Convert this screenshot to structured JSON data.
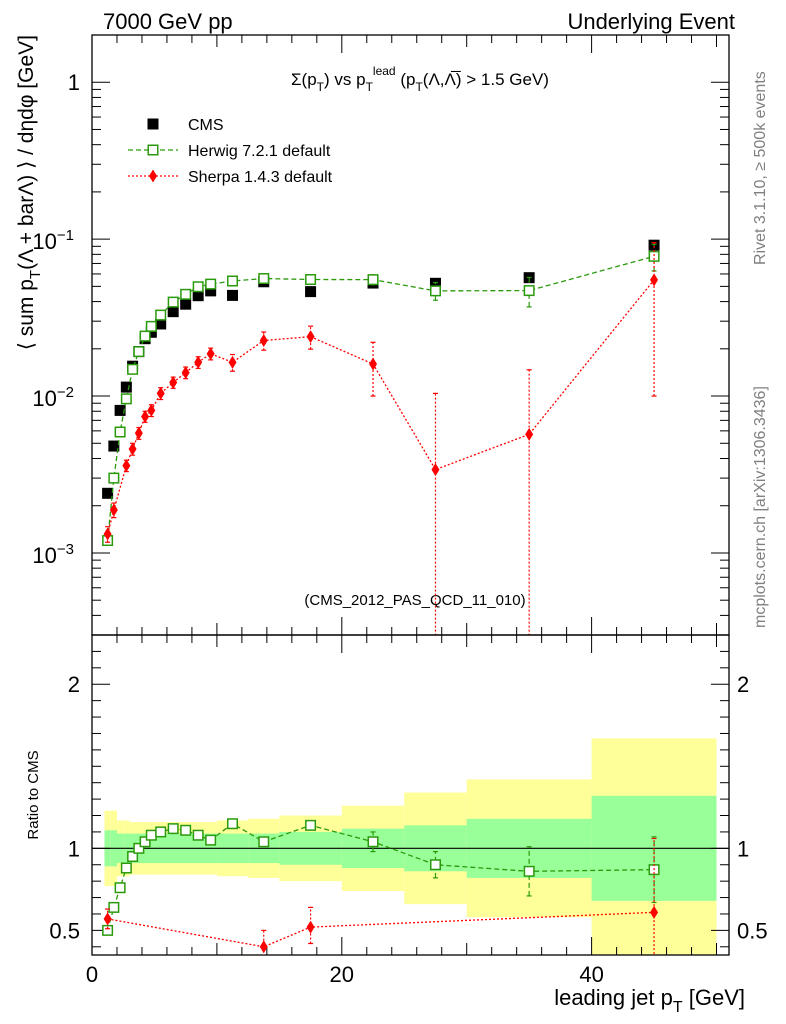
{
  "header": {
    "left": "7000 GeV pp",
    "right": "Underlying Event"
  },
  "side_labels": {
    "rivet": "Rivet 3.1.10, ≥ 500k events",
    "mcplots": "mcplots.cern.ch [arXiv:1306.3436]"
  },
  "chart_data": [
    {
      "type": "scatter",
      "title": "Σ(p_T) vs p_T^lead (p_T(Λ,Λ̅) > 1.5 GeV)",
      "ylabel": "⟨ sum p_T(Λ + barΛ) ⟩ / dηdφ [GeV]",
      "xlabel": "",
      "xlim": [
        0,
        51
      ],
      "ylim": [
        0.0003,
        2
      ],
      "yscale": "log",
      "yticks": [
        {
          "value": 0.001,
          "base": "10",
          "exp": "−3"
        },
        {
          "value": 0.01,
          "base": "10",
          "exp": "−2"
        },
        {
          "value": 0.1,
          "base": "10",
          "exp": "−1"
        },
        {
          "value": 1,
          "label": "1"
        }
      ],
      "legend_position": "top-left",
      "watermark": "(CMS_2012_PAS_QCD_11_010)",
      "series": [
        {
          "name": "CMS",
          "color": "#000000",
          "marker": "filled-square",
          "x": [
            1.25,
            1.75,
            2.25,
            2.75,
            3.25,
            3.75,
            4.25,
            4.75,
            5.5,
            6.5,
            7.5,
            8.5,
            9.5,
            11.25,
            13.75,
            17.5,
            22.5,
            27.5,
            35,
            45
          ],
          "y": [
            0.0024,
            0.0048,
            0.0081,
            0.0114,
            0.0155,
            0.0192,
            0.0232,
            0.0255,
            0.0288,
            0.0345,
            0.0385,
            0.0436,
            0.0468,
            0.0438,
            0.0535,
            0.0463,
            0.0525,
            0.0523,
            0.0568,
            0.0915
          ]
        },
        {
          "name": "Herwig 7.2.1 default",
          "color": "#2a9a0c",
          "marker": "open-square",
          "line": "dashed",
          "x": [
            1.25,
            1.75,
            2.25,
            2.75,
            3.25,
            3.75,
            4.25,
            4.75,
            5.5,
            6.5,
            7.5,
            8.5,
            9.5,
            11.25,
            13.75,
            17.5,
            22.5,
            27.5,
            35,
            45
          ],
          "y": [
            0.0012,
            0.003,
            0.0059,
            0.0096,
            0.0148,
            0.0192,
            0.0241,
            0.0278,
            0.0328,
            0.0397,
            0.0445,
            0.0497,
            0.0517,
            0.0541,
            0.0561,
            0.0553,
            0.0552,
            0.0468,
            0.047,
            0.0777
          ],
          "err": [
            0,
            0,
            0,
            0,
            0,
            0,
            0,
            0,
            0,
            0,
            0,
            0,
            0,
            0,
            0,
            0,
            0.004,
            0.006,
            0.01,
            0.015
          ]
        },
        {
          "name": "Sherpa 1.4.3 default",
          "color": "#ff0000",
          "marker": "filled-diamond",
          "line": "dotted",
          "x": [
            1.25,
            1.75,
            2.75,
            3.25,
            3.75,
            4.25,
            4.75,
            5.5,
            6.5,
            7.5,
            8.5,
            9.5,
            11.25,
            13.75,
            17.5,
            22.5,
            27.5,
            35,
            45
          ],
          "y": [
            0.00132,
            0.00188,
            0.0036,
            0.0046,
            0.0058,
            0.0074,
            0.0081,
            0.0104,
            0.0122,
            0.0141,
            0.0164,
            0.0186,
            0.0164,
            0.0226,
            0.0239,
            0.016,
            0.0034,
            0.0057,
            0.055
          ],
          "err_lo": [
            0.00015,
            0.0002,
            0.0003,
            0.0004,
            0.0005,
            0.0006,
            0.0007,
            0.0009,
            0.001,
            0.0012,
            0.0014,
            0.0016,
            0.002,
            0.003,
            0.004,
            0.006,
            0.0034,
            0.0057,
            0.045
          ],
          "err_hi": [
            0.00015,
            0.0002,
            0.0003,
            0.0004,
            0.0005,
            0.0006,
            0.0007,
            0.0009,
            0.001,
            0.0012,
            0.0014,
            0.0016,
            0.002,
            0.003,
            0.004,
            0.006,
            0.007,
            0.009,
            0.04
          ]
        }
      ]
    },
    {
      "type": "scatter",
      "ylabel": "Ratio to CMS",
      "xlabel": "leading jet p_T [GeV]",
      "xlim": [
        0,
        51
      ],
      "ylim": [
        0.35,
        2.3
      ],
      "xticks": [
        "0",
        "20",
        "40"
      ],
      "yticks": [
        "0.5",
        "1",
        "2"
      ],
      "bands": [
        {
          "x0": 1.0,
          "x1": 1.5,
          "stat_lo": 0.89,
          "stat_hi": 1.11,
          "tot_lo": 0.77,
          "tot_hi": 1.23
        },
        {
          "x0": 1.5,
          "x1": 2.0,
          "stat_lo": 0.89,
          "stat_hi": 1.11,
          "tot_lo": 0.77,
          "tot_hi": 1.23
        },
        {
          "x0": 2.0,
          "x1": 2.5,
          "stat_lo": 0.91,
          "stat_hi": 1.09,
          "tot_lo": 0.83,
          "tot_hi": 1.17
        },
        {
          "x0": 2.5,
          "x1": 3.0,
          "stat_lo": 0.91,
          "stat_hi": 1.09,
          "tot_lo": 0.83,
          "tot_hi": 1.17
        },
        {
          "x0": 3.0,
          "x1": 5.0,
          "stat_lo": 0.91,
          "stat_hi": 1.09,
          "tot_lo": 0.84,
          "tot_hi": 1.16
        },
        {
          "x0": 5.0,
          "x1": 10.0,
          "stat_lo": 0.91,
          "stat_hi": 1.09,
          "tot_lo": 0.84,
          "tot_hi": 1.16
        },
        {
          "x0": 10.0,
          "x1": 12.5,
          "stat_lo": 0.91,
          "stat_hi": 1.09,
          "tot_lo": 0.83,
          "tot_hi": 1.17
        },
        {
          "x0": 12.5,
          "x1": 15.0,
          "stat_lo": 0.91,
          "stat_hi": 1.09,
          "tot_lo": 0.82,
          "tot_hi": 1.18
        },
        {
          "x0": 15.0,
          "x1": 20.0,
          "stat_lo": 0.9,
          "stat_hi": 1.1,
          "tot_lo": 0.8,
          "tot_hi": 1.2
        },
        {
          "x0": 20.0,
          "x1": 25.0,
          "stat_lo": 0.88,
          "stat_hi": 1.12,
          "tot_lo": 0.74,
          "tot_hi": 1.26
        },
        {
          "x0": 25.0,
          "x1": 30.0,
          "stat_lo": 0.86,
          "stat_hi": 1.14,
          "tot_lo": 0.66,
          "tot_hi": 1.34
        },
        {
          "x0": 30.0,
          "x1": 40.0,
          "stat_lo": 0.82,
          "stat_hi": 1.18,
          "tot_lo": 0.58,
          "tot_hi": 1.42
        },
        {
          "x0": 40.0,
          "x1": 50.0,
          "stat_lo": 0.68,
          "stat_hi": 1.32,
          "tot_lo": 0.35,
          "tot_hi": 1.67
        }
      ],
      "series": [
        {
          "name": "Herwig 7.2.1 default",
          "color": "#2a9a0c",
          "marker": "open-square",
          "line": "dashed",
          "x": [
            1.25,
            1.75,
            2.25,
            2.75,
            3.25,
            3.75,
            4.25,
            4.75,
            5.5,
            6.5,
            7.5,
            8.5,
            9.5,
            11.25,
            13.75,
            17.5,
            22.5,
            27.5,
            35,
            45
          ],
          "y": [
            0.5,
            0.64,
            0.76,
            0.88,
            0.95,
            1.0,
            1.04,
            1.08,
            1.1,
            1.12,
            1.11,
            1.08,
            1.05,
            1.15,
            1.04,
            1.14,
            1.04,
            0.9,
            0.86,
            0.87
          ],
          "err": [
            0,
            0,
            0,
            0,
            0,
            0,
            0,
            0,
            0,
            0,
            0,
            0,
            0,
            0,
            0,
            0.02,
            0.06,
            0.08,
            0.15,
            0.2
          ]
        },
        {
          "name": "Sherpa 1.4.3 default",
          "color": "#ff0000",
          "marker": "filled-diamond",
          "line": "dotted",
          "x": [
            1.25,
            13.75,
            17.5,
            45
          ],
          "y": [
            0.57,
            0.4,
            0.52,
            0.61
          ],
          "err_lo": [
            0.06,
            0.06,
            0.1,
            0.45
          ],
          "err_hi": [
            0.06,
            0.1,
            0.12,
            0.45
          ]
        }
      ]
    }
  ]
}
